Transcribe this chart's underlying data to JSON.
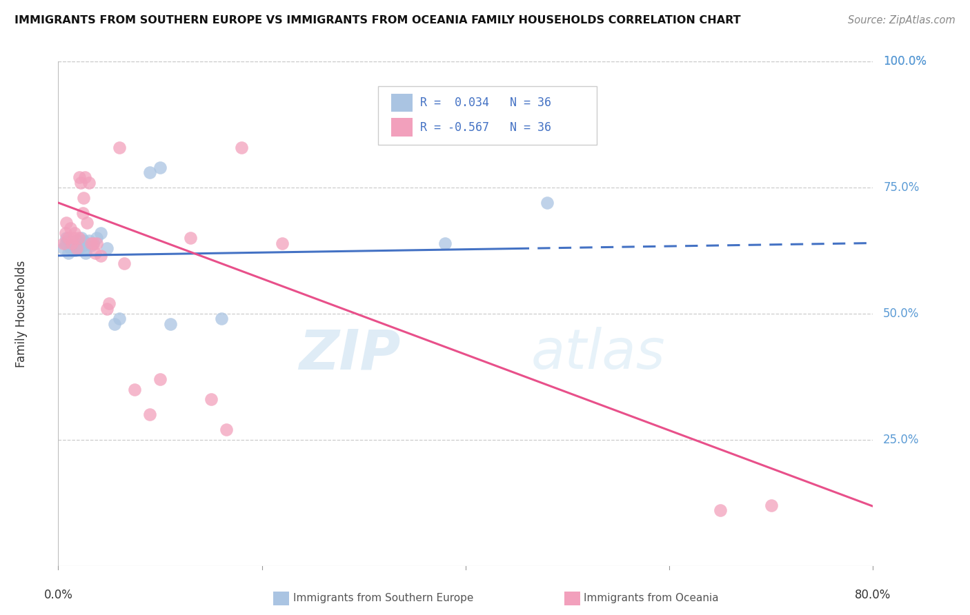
{
  "title": "IMMIGRANTS FROM SOUTHERN EUROPE VS IMMIGRANTS FROM OCEANIA FAMILY HOUSEHOLDS CORRELATION CHART",
  "source": "Source: ZipAtlas.com",
  "ylabel": "Family Households",
  "ytick_labels": [
    "100.0%",
    "75.0%",
    "50.0%",
    "25.0%"
  ],
  "ytick_values": [
    1.0,
    0.75,
    0.5,
    0.25
  ],
  "xlim": [
    0,
    0.8
  ],
  "ylim": [
    0,
    1.0
  ],
  "legend_label1": "Immigrants from Southern Europe",
  "legend_label2": "Immigrants from Oceania",
  "R1": 0.034,
  "N1": 36,
  "R2": -0.567,
  "N2": 36,
  "blue_color": "#aac4e2",
  "pink_color": "#f2a0bc",
  "trend_blue": "#4472c4",
  "trend_pink": "#e8508a",
  "background_color": "#ffffff",
  "watermark_zip": "ZIP",
  "watermark_atlas": "atlas",
  "blue_scatter_x": [
    0.005,
    0.007,
    0.008,
    0.01,
    0.01,
    0.012,
    0.013,
    0.014,
    0.015,
    0.016,
    0.017,
    0.018,
    0.019,
    0.02,
    0.021,
    0.022,
    0.023,
    0.024,
    0.025,
    0.026,
    0.027,
    0.028,
    0.03,
    0.032,
    0.034,
    0.038,
    0.042,
    0.048,
    0.055,
    0.06,
    0.09,
    0.1,
    0.11,
    0.16,
    0.38,
    0.48
  ],
  "blue_scatter_y": [
    0.63,
    0.64,
    0.65,
    0.62,
    0.645,
    0.63,
    0.64,
    0.625,
    0.635,
    0.64,
    0.625,
    0.635,
    0.645,
    0.63,
    0.635,
    0.64,
    0.65,
    0.635,
    0.645,
    0.63,
    0.62,
    0.64,
    0.645,
    0.635,
    0.64,
    0.65,
    0.66,
    0.63,
    0.48,
    0.49,
    0.78,
    0.79,
    0.48,
    0.49,
    0.64,
    0.72
  ],
  "pink_scatter_x": [
    0.005,
    0.007,
    0.008,
    0.01,
    0.012,
    0.013,
    0.015,
    0.016,
    0.018,
    0.02,
    0.021,
    0.022,
    0.024,
    0.025,
    0.026,
    0.028,
    0.03,
    0.032,
    0.034,
    0.036,
    0.038,
    0.042,
    0.048,
    0.05,
    0.06,
    0.065,
    0.075,
    0.09,
    0.1,
    0.13,
    0.15,
    0.165,
    0.18,
    0.22,
    0.65,
    0.7
  ],
  "pink_scatter_y": [
    0.64,
    0.66,
    0.68,
    0.65,
    0.67,
    0.64,
    0.65,
    0.66,
    0.63,
    0.65,
    0.77,
    0.76,
    0.7,
    0.73,
    0.77,
    0.68,
    0.76,
    0.64,
    0.64,
    0.62,
    0.64,
    0.615,
    0.51,
    0.52,
    0.83,
    0.6,
    0.35,
    0.3,
    0.37,
    0.65,
    0.33,
    0.27,
    0.83,
    0.64,
    0.11,
    0.12
  ],
  "blue_trend_x": [
    0.0,
    0.45,
    0.45,
    0.8
  ],
  "blue_trend_y0": 0.615,
  "blue_trend_y1": 0.64,
  "pink_trend_x0": 0.0,
  "pink_trend_y0": 0.72,
  "pink_trend_x1": 0.8,
  "pink_trend_y1": 0.118
}
